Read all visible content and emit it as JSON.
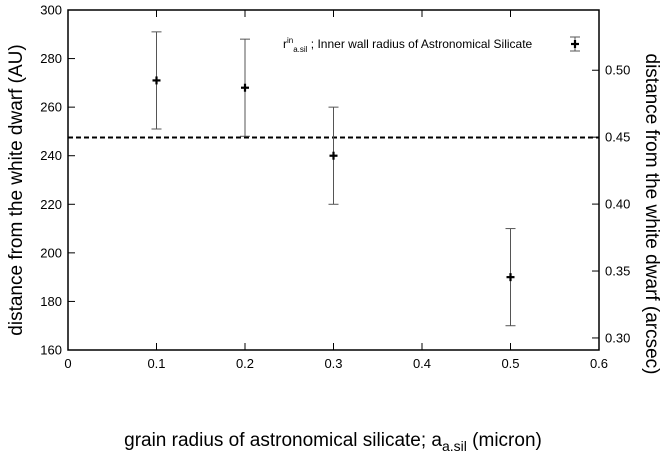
{
  "chart_data": {
    "type": "scatter",
    "xlabel_main": "grain radius of astronomical silicate; a",
    "xlabel_sub": "a.sil",
    "xlabel_tail": " (micron)",
    "ylabel_left": "distance from the white dwarf (AU)",
    "ylabel_right": "distance from the white dwarf (arcsec)",
    "xlim": [
      0,
      0.6
    ],
    "ylim_left": [
      160,
      300
    ],
    "ylim_right": [
      0.291,
      0.545
    ],
    "x_ticks": [
      "0",
      "0.1",
      "0.2",
      "0.3",
      "0.4",
      "0.5",
      "0.6"
    ],
    "y_left_ticks": [
      "160",
      "180",
      "200",
      "220",
      "240",
      "260",
      "280",
      "300"
    ],
    "y_right_ticks": [
      "0.30",
      "0.35",
      "0.40",
      "0.45",
      "0.50"
    ],
    "legend": {
      "base": "r",
      "sup": "in",
      "sub": "a.sil",
      "text": " ; Inner wall radius of Astronomical Silicate",
      "position": "top-right"
    },
    "series": [
      {
        "name": "r^in_a.sil ; Inner wall radius of Astronomical Silicate",
        "points": [
          {
            "x": 0.1,
            "y": 271,
            "ylow": 251,
            "yhigh": 291
          },
          {
            "x": 0.2,
            "y": 268,
            "ylow": 248,
            "yhigh": 288
          },
          {
            "x": 0.3,
            "y": 240,
            "ylow": 220,
            "yhigh": 260
          },
          {
            "x": 0.5,
            "y": 190,
            "ylow": 170,
            "yhigh": 210
          }
        ]
      }
    ],
    "reference_line": {
      "y": 247.5,
      "style": "dashed"
    },
    "grid": false
  }
}
